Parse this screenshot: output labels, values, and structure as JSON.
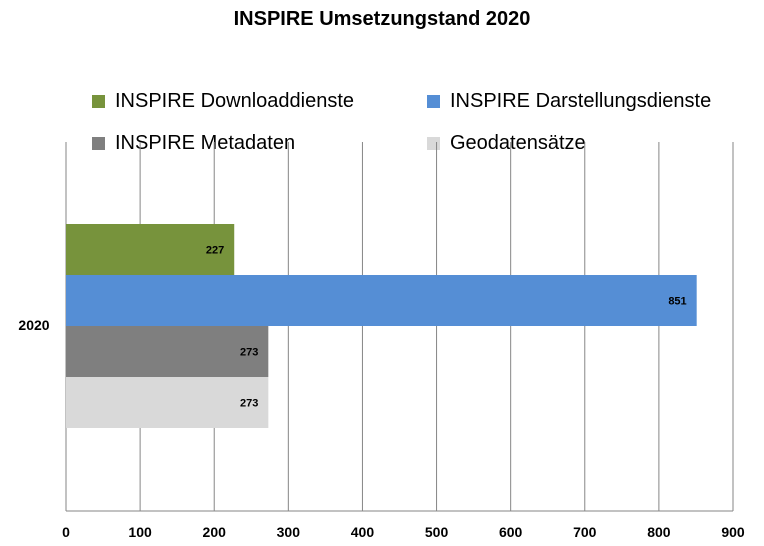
{
  "chart_data": {
    "type": "bar",
    "orientation": "horizontal",
    "title": "INSPIRE Umsetzungstand 2020",
    "categories": [
      "2020"
    ],
    "series": [
      {
        "name": "INSPIRE Downloaddienste",
        "values": [
          227
        ],
        "color": "#77933c"
      },
      {
        "name": "INSPIRE Darstellungsdienste",
        "values": [
          851
        ],
        "color": "#558ed5"
      },
      {
        "name": "INSPIRE Metadaten",
        "values": [
          273
        ],
        "color": "#7f7f7f"
      },
      {
        "name": "Geodatensätze",
        "values": [
          273
        ],
        "color": "#d9d9d9"
      }
    ],
    "xlim": [
      0,
      900
    ],
    "xticks": [
      "0",
      "100",
      "200",
      "300",
      "400",
      "500",
      "600",
      "700",
      "800",
      "900"
    ],
    "grid": true,
    "legend_position": "top",
    "data_labels": true
  }
}
